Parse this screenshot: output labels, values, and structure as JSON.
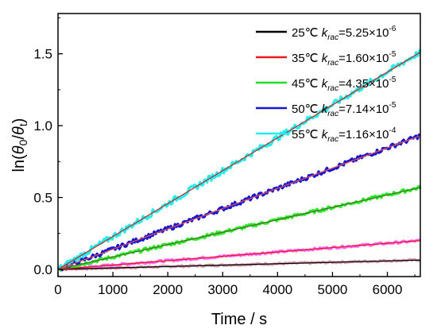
{
  "chart_data": {
    "type": "line",
    "title": "",
    "xlabel": "Time / s",
    "ylabel": "ln(θ0/θt)",
    "ylabel_parts": {
      "prefix": "ln(",
      "sym1": "θ",
      "sub1": "0",
      "mid": "/",
      "sym2": "θ",
      "sub2": "t",
      "suffix": ")"
    },
    "xlim": [
      0,
      6600
    ],
    "ylim": [
      -0.05,
      1.78
    ],
    "x_ticks": [
      0,
      1000,
      2000,
      3000,
      4000,
      5000,
      6000
    ],
    "y_ticks": [
      0.0,
      0.5,
      1.0,
      1.5
    ],
    "x_tick_labels": [
      "0",
      "1000",
      "2000",
      "3000",
      "4000",
      "5000",
      "6000"
    ],
    "y_tick_labels": [
      "0.0",
      "0.5",
      "1.0",
      "1.5"
    ],
    "grid": false,
    "legend_position": "top-right",
    "series": [
      {
        "temp": "25℃",
        "k_label": "k",
        "k_sub": "rac",
        "k_value": "=5.25×10",
        "k_exp": "-6",
        "slope": 9.92e-06,
        "data_color": "#d9a0b0",
        "fit_color": "#000000",
        "legend_color": "#000000",
        "end": [
          6600,
          0.065
        ]
      },
      {
        "temp": "35℃",
        "k_label": "k",
        "k_sub": "rac",
        "k_value": "=1.60×10",
        "k_exp": "-5",
        "slope": 3.03e-05,
        "data_color": "#ff66ff",
        "fit_color": "#e8191a",
        "legend_color": "#e8191a",
        "end": [
          6600,
          0.2
        ]
      },
      {
        "temp": "45℃",
        "k_label": "k",
        "k_sub": "rac",
        "k_value": "=4.35×10",
        "k_exp": "-5",
        "slope": 8.64e-05,
        "data_color": "#22ee22",
        "fit_color": "#556b2f",
        "legend_color": "#22dd22",
        "end": [
          6600,
          0.57
        ]
      },
      {
        "temp": "50℃",
        "k_label": "k",
        "k_sub": "rac",
        "k_value": "=7.14×10",
        "k_exp": "-5",
        "slope": 0.000141,
        "data_color": "#1515d6",
        "fit_color": "#e05050",
        "legend_color": "#1515d6",
        "end": [
          6600,
          0.93
        ]
      },
      {
        "temp": "55℃",
        "k_label": "k",
        "k_sub": "rac",
        "k_value": "=1.16×10",
        "k_exp": "-4",
        "slope": 0.000229,
        "data_color": "#22eeee",
        "fit_color": "#c03030",
        "legend_color": "#22eeee",
        "end": [
          6600,
          1.51
        ]
      }
    ]
  }
}
